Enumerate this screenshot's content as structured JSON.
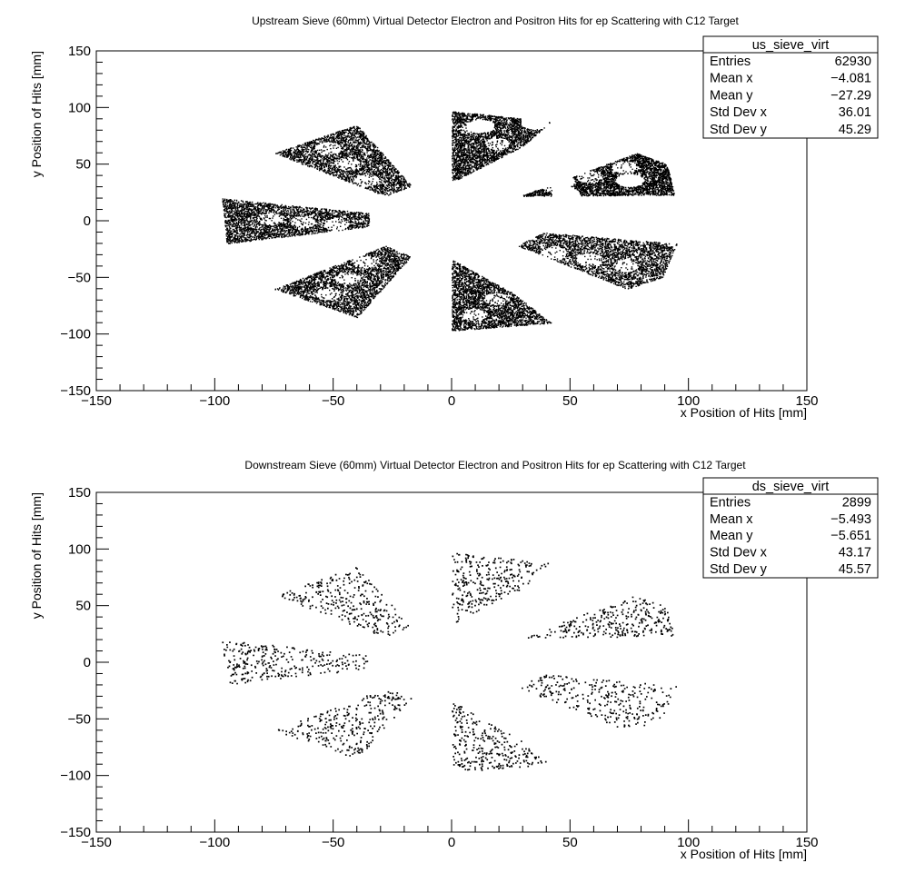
{
  "chart_data": [
    {
      "type": "scatter",
      "title": "Upstream Sieve (60mm) Virtual Detector Electron and Positron Hits for ep Scattering with C12 Target",
      "xlabel": "x Position of Hits [mm]",
      "ylabel": "y Position of Hits [mm]",
      "xlim": [
        -150,
        150
      ],
      "ylim": [
        -150,
        150
      ],
      "xticks": [
        -150,
        -100,
        -50,
        0,
        50,
        100,
        150
      ],
      "yticks": [
        -150,
        -100,
        -50,
        0,
        50,
        100,
        150
      ],
      "xtick_labels": [
        "−150",
        "−100",
        "−50",
        "0",
        "50",
        "100",
        "150"
      ],
      "ytick_labels": [
        "−150",
        "−100",
        "−50",
        "0",
        "50",
        "100",
        "150"
      ],
      "grid": false,
      "marker_color": "#000000",
      "density": "dense",
      "stats_box": {
        "name": "us_sieve_virt",
        "placement": "top-right",
        "rows": [
          {
            "label": "Entries",
            "value": "62930"
          },
          {
            "label": "Mean x",
            "value": "−4.081"
          },
          {
            "label": "Mean y",
            "value": "−27.29"
          },
          {
            "label": "Std Dev x",
            "value": "36.01"
          },
          {
            "label": "Std Dev y",
            "value": "45.29"
          }
        ]
      },
      "regions": [
        {
          "corners": [
            [
              0,
              97
            ],
            [
              42,
              88
            ],
            [
              30,
              66
            ],
            [
              0,
              34
            ]
          ],
          "holes": [
            [
              12,
              94
            ],
            [
              57,
              75
            ],
            [
              22,
              59
            ],
            [
              20,
              85
            ],
            [
              36,
              64
            ],
            [
              22,
              64
            ],
            [
              10,
              45
            ],
            [
              20,
              60
            ],
            [
              20,
              40
            ]
          ]
        },
        {
          "corners": [
            [
              29,
              22
            ],
            [
              94,
              23
            ],
            [
              91,
              50
            ],
            [
              78,
              60
            ]
          ],
          "holes": [
            [
              45,
              68
            ],
            [
              29,
              62
            ],
            [
              67,
              78
            ],
            [
              20,
              75
            ],
            [
              26,
              73
            ],
            [
              20,
              35
            ],
            [
              67,
              30
            ],
            [
              45,
              27
            ]
          ]
        },
        {
          "corners": [
            [
              28,
              -22
            ],
            [
              38,
              -10
            ],
            [
              95,
              -20
            ],
            [
              89,
              -50
            ],
            [
              74,
              -60
            ]
          ],
          "holes": [
            [
              40,
              -28
            ],
            [
              77,
              -26
            ],
            [
              13,
              -58
            ],
            [
              78,
              -90
            ],
            [
              70,
              -25
            ]
          ]
        },
        {
          "corners": [
            [
              0,
              -97
            ],
            [
              42,
              -90
            ],
            [
              26,
              -64
            ],
            [
              0,
              -34
            ]
          ],
          "holes": [
            [
              16,
              -48
            ],
            [
              11,
              -37
            ],
            [
              60,
              -64
            ],
            [
              22,
              -57
            ],
            [
              15,
              -57
            ],
            [
              72,
              -54
            ],
            [
              5,
              -87
            ],
            [
              27,
              -38
            ]
          ]
        },
        {
          "corners": [
            [
              -28,
              -22
            ],
            [
              -17,
              -31
            ],
            [
              -40,
              -85
            ],
            [
              -75,
              -60
            ]
          ],
          "holes": [
            [
              37,
              -32
            ],
            [
              86,
              -25
            ],
            [
              56,
              -53
            ],
            [
              47,
              -96
            ],
            [
              43,
              -70
            ],
            [
              10,
              -34
            ]
          ]
        },
        {
          "corners": [
            [
              -35,
              -5
            ],
            [
              -95,
              -20
            ],
            [
              -97,
              20
            ],
            [
              -35,
              7
            ]
          ],
          "holes": [
            [
              -12,
              -53
            ],
            [
              -23,
              -25
            ],
            [
              -72,
              -17
            ],
            [
              -60,
              -5
            ],
            [
              -67,
              -37
            ],
            [
              -92,
              7
            ],
            [
              -24,
              -79
            ]
          ]
        },
        {
          "corners": [
            [
              -28,
              22
            ],
            [
              -17,
              31
            ],
            [
              -40,
              85
            ],
            [
              -75,
              60
            ]
          ],
          "holes": [
            [
              -59,
              72
            ],
            [
              -42,
              68
            ],
            [
              -90,
              75
            ],
            [
              -3,
              84
            ],
            [
              -47,
              56
            ],
            [
              -85,
              43
            ],
            [
              -35,
              59
            ],
            [
              -22,
              -54
            ]
          ]
        }
      ],
      "hole_centers": [
        [
          12,
          84
        ],
        [
          35,
          87
        ],
        [
          27,
          47
        ],
        [
          21,
          47
        ],
        [
          36,
          48
        ],
        [
          48,
          24
        ],
        [
          75,
          36
        ],
        [
          46,
          35
        ],
        [
          40,
          -64
        ],
        [
          30,
          -47
        ],
        [
          29,
          -12
        ]
      ]
    },
    {
      "type": "scatter",
      "title": "Downstream Sieve (60mm) Virtual Detector Electron and Positron Hits for ep Scattering with C12 Target",
      "xlabel": "x Position of Hits [mm]",
      "ylabel": "y Position of Hits [mm]",
      "xlim": [
        -150,
        150
      ],
      "ylim": [
        -150,
        150
      ],
      "xticks": [
        -150,
        -100,
        -50,
        0,
        50,
        100,
        150
      ],
      "yticks": [
        -150,
        -100,
        -50,
        0,
        50,
        100,
        150
      ],
      "xtick_labels": [
        "−150",
        "−100",
        "−50",
        "0",
        "50",
        "100",
        "150"
      ],
      "ytick_labels": [
        "−150",
        "−100",
        "−50",
        "0",
        "50",
        "100",
        "150"
      ],
      "grid": false,
      "marker_color": "#000000",
      "density": "sparse",
      "stats_box": {
        "name": "ds_sieve_virt",
        "placement": "top-right",
        "rows": [
          {
            "label": "Entries",
            "value": "2899"
          },
          {
            "label": "Mean x",
            "value": "−5.493"
          },
          {
            "label": "Mean y",
            "value": "−5.651"
          },
          {
            "label": "Std Dev x",
            "value": "43.17"
          },
          {
            "label": "Std Dev y",
            "value": "45.57"
          }
        ]
      },
      "regions": [
        {
          "corners": [
            [
              0,
              97
            ],
            [
              42,
              88
            ],
            [
              30,
              66
            ],
            [
              0,
              34
            ]
          ],
          "holes": []
        },
        {
          "corners": [
            [
              29,
              22
            ],
            [
              94,
              23
            ],
            [
              91,
              50
            ],
            [
              78,
              60
            ]
          ],
          "holes": []
        },
        {
          "corners": [
            [
              28,
              -22
            ],
            [
              38,
              -10
            ],
            [
              95,
              -20
            ],
            [
              89,
              -50
            ],
            [
              74,
              -60
            ]
          ],
          "holes": []
        },
        {
          "corners": [
            [
              0,
              -97
            ],
            [
              42,
              -90
            ],
            [
              26,
              -64
            ],
            [
              0,
              -34
            ]
          ],
          "holes": []
        },
        {
          "corners": [
            [
              -28,
              -22
            ],
            [
              -17,
              -31
            ],
            [
              -40,
              -85
            ],
            [
              -75,
              -60
            ]
          ],
          "holes": []
        },
        {
          "corners": [
            [
              -35,
              -5
            ],
            [
              -95,
              -20
            ],
            [
              -97,
              20
            ],
            [
              -35,
              7
            ]
          ],
          "holes": []
        },
        {
          "corners": [
            [
              -28,
              22
            ],
            [
              -17,
              31
            ],
            [
              -40,
              85
            ],
            [
              -75,
              60
            ]
          ],
          "holes": []
        }
      ],
      "hole_centers": []
    }
  ]
}
